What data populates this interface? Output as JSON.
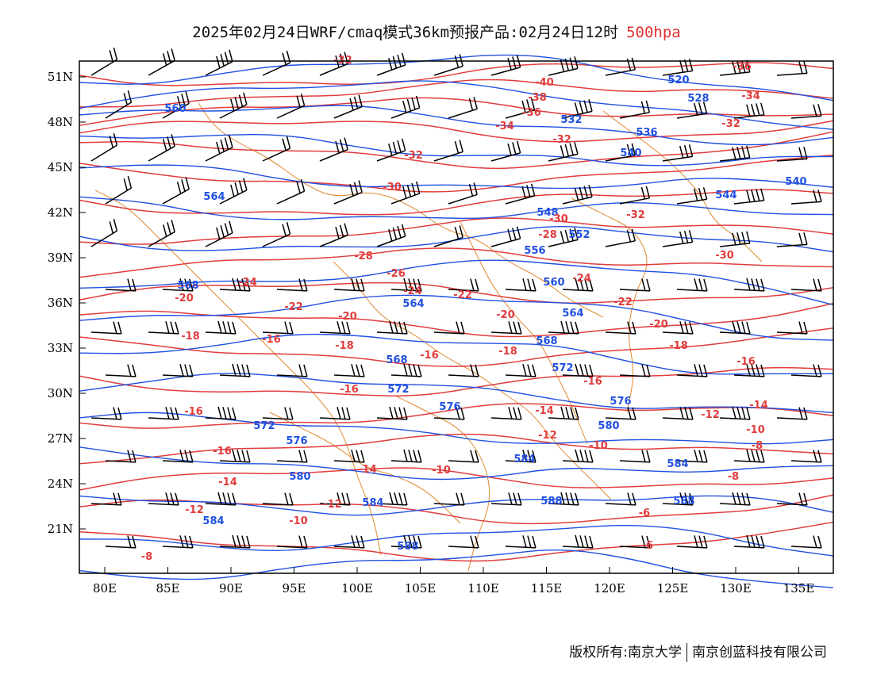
{
  "title": {
    "main": "2025年02月24日WRF/cmaq模式36km预报产品:02月24日12时",
    "level": "500hpa"
  },
  "footer": {
    "left": "版权所有:南京大学",
    "right": "南京创蓝科技有限公司"
  },
  "map": {
    "lat_labels": [
      "51N",
      "48N",
      "45N",
      "42N",
      "39N",
      "36N",
      "33N",
      "30N",
      "27N",
      "24N",
      "21N"
    ],
    "lon_labels": [
      "80E",
      "85E",
      "90E",
      "95E",
      "100E",
      "105E",
      "110E",
      "115E",
      "120E",
      "125E",
      "130E",
      "135E"
    ],
    "height_contour_labels": [
      "520",
      "528",
      "532",
      "536",
      "540",
      "544",
      "548",
      "552",
      "556",
      "560",
      "564",
      "568",
      "572",
      "576",
      "580",
      "584",
      "588"
    ],
    "temperature_contour_labels": [
      "-40",
      "-38",
      "-36",
      "-34",
      "-32",
      "-30",
      "-28",
      "-26",
      "-24",
      "-22",
      "-20",
      "-18",
      "-16",
      "-14",
      "-12",
      "-10",
      "-8",
      "-6"
    ],
    "colors": {
      "height_contour": "#2050e0",
      "temperature_contour": "#e03c3c",
      "boundary": "#e08a30",
      "wind_barb": "#000000",
      "level_text": "#e03030"
    }
  }
}
